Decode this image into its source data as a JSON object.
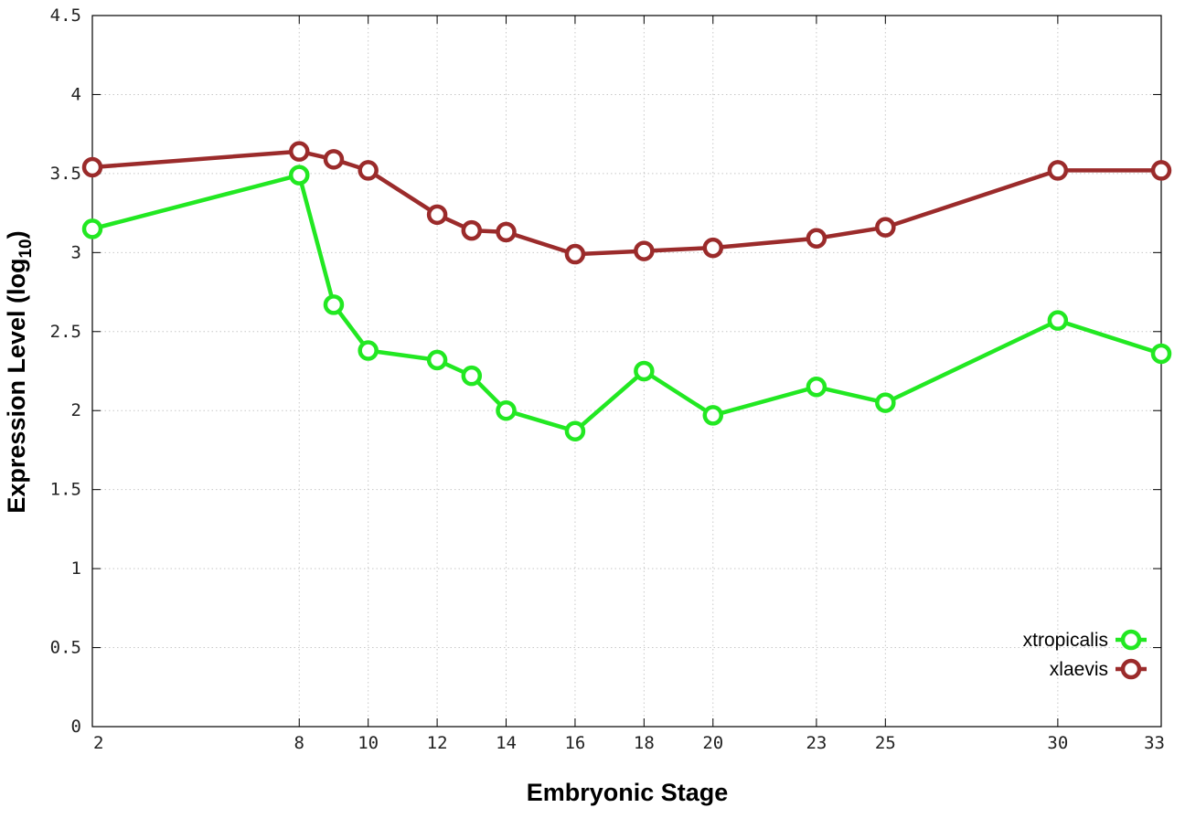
{
  "chart_data": {
    "type": "line",
    "xlabel": "Embryonic Stage",
    "ylabel_main": "Expression Level (log",
    "ylabel_sub": "10",
    "ylabel_close": ")",
    "xlim": [
      2,
      33
    ],
    "ylim": [
      0,
      4.5
    ],
    "x_ticks": [
      2,
      8,
      10,
      12,
      14,
      16,
      18,
      20,
      23,
      25,
      30,
      33
    ],
    "y_ticks": [
      {
        "value": 0,
        "label": "0"
      },
      {
        "value": 0.5,
        "label": "0.5"
      },
      {
        "value": 1,
        "label": "1"
      },
      {
        "value": 1.5,
        "label": "1.5"
      },
      {
        "value": 2,
        "label": "2"
      },
      {
        "value": 2.5,
        "label": "2.5"
      },
      {
        "value": 3,
        "label": "3"
      },
      {
        "value": 3.5,
        "label": "3.5"
      },
      {
        "value": 4,
        "label": "4"
      },
      {
        "value": 4.5,
        "label": "4.5"
      }
    ],
    "grid": true,
    "legend_position": "bottom-right",
    "x": [
      2,
      8,
      9,
      10,
      12,
      13,
      14,
      16,
      18,
      20,
      23,
      25,
      30,
      33
    ],
    "series": [
      {
        "name": "xtropicalis",
        "color": "#22e822",
        "values": [
          3.15,
          3.49,
          2.67,
          2.38,
          2.32,
          2.22,
          2.0,
          1.87,
          2.25,
          1.97,
          2.15,
          2.05,
          2.57,
          2.36
        ]
      },
      {
        "name": "xlaevis",
        "color": "#9b2b2b",
        "values": [
          3.54,
          3.64,
          3.59,
          3.52,
          3.24,
          3.14,
          3.13,
          2.99,
          3.01,
          3.03,
          3.09,
          3.16,
          3.52,
          3.52
        ]
      }
    ]
  }
}
